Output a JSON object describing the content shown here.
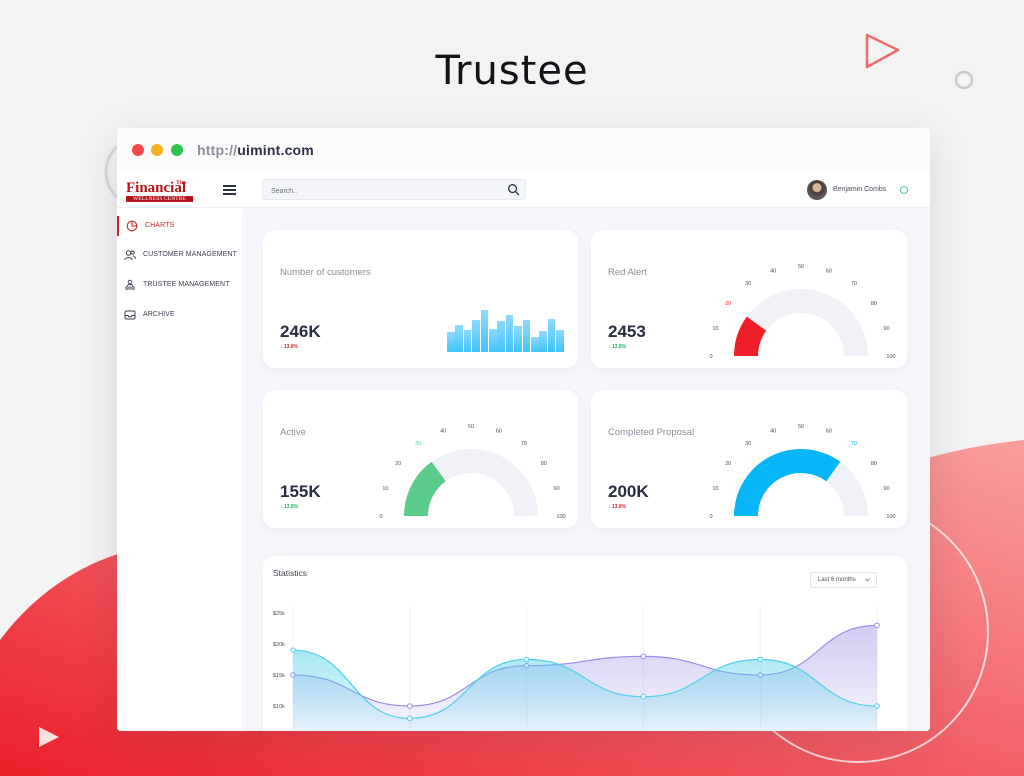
{
  "promo": {
    "title": "Trustee"
  },
  "browser": {
    "url_protocol": "http://",
    "url_host": "uimint.com"
  },
  "logo": {
    "the": "The",
    "main": "Financial",
    "sub": "WELLNESS CENTRE"
  },
  "search": {
    "placeholder": "Search.."
  },
  "user": {
    "name": "Benjamin Combs",
    "status_icon": "online-status-icon"
  },
  "sidebar": {
    "items": [
      {
        "label": "CHARTS",
        "icon": "pie-chart-icon",
        "active": true
      },
      {
        "label": "CUSTOMER MANAGEMENT",
        "icon": "users-icon",
        "active": false
      },
      {
        "label": "TRUSTEE MANAGEMENT",
        "icon": "trustee-icon",
        "active": false
      },
      {
        "label": "ARCHIVE",
        "icon": "inbox-icon",
        "active": false
      }
    ]
  },
  "cards": {
    "customers": {
      "title": "Number of customers",
      "value": "246K",
      "trend": "13.8%",
      "trend_dir": "down",
      "bars": [
        0.45,
        0.62,
        0.5,
        0.72,
        0.95,
        0.52,
        0.7,
        0.85,
        0.6,
        0.72,
        0.35,
        0.48,
        0.75,
        0.5
      ]
    },
    "red_alert": {
      "title": "Red Alert",
      "value": "2453",
      "trend": "13.8%",
      "trend_dir": "up",
      "gauge_value": 20,
      "color": "#ee1f26"
    },
    "active": {
      "title": "Active",
      "value": "155K",
      "trend": "13.8%",
      "trend_dir": "up",
      "gauge_value": 30,
      "color": "#5bcb8b"
    },
    "completed": {
      "title": "Completed Proposal",
      "value": "200K",
      "trend": "13.8%",
      "trend_dir": "down",
      "gauge_value": 70,
      "color": "#06b6f6"
    }
  },
  "gauge_ticks": [
    "0",
    "10",
    "20",
    "30",
    "40",
    "50",
    "60",
    "70",
    "80",
    "90",
    "100"
  ],
  "statistics": {
    "title": "Statistics",
    "range_label": "Last 6 months",
    "chart_data": {
      "type": "area",
      "yticks": [
        "$25k",
        "$20k",
        "$15k",
        "$10k"
      ],
      "series": [
        {
          "values": [
            15,
            10,
            16.5,
            18,
            15,
            23
          ],
          "color": "#9b8ce6"
        },
        {
          "values": [
            19,
            8,
            17.5,
            11.5,
            17.5,
            10
          ],
          "color": "#4fd0ea"
        }
      ]
    }
  }
}
